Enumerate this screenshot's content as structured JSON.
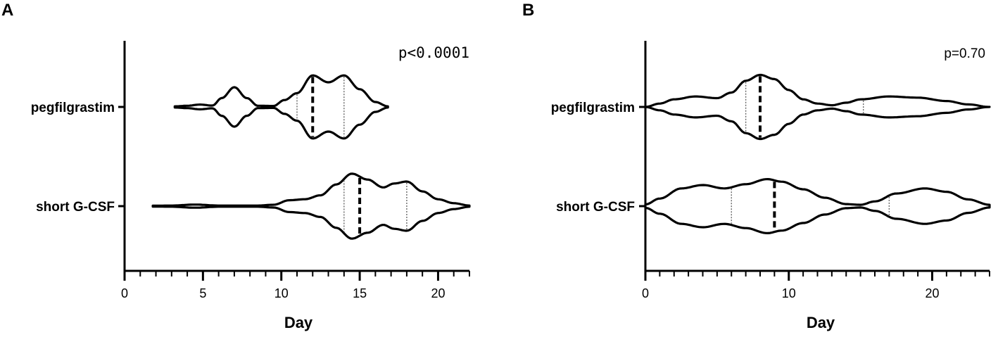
{
  "chart_data": [
    {
      "type": "violin",
      "panel_label": "A",
      "annotation": "p<0.0001",
      "xlabel": "Day",
      "ylabel": "",
      "xlim": [
        0,
        22
      ],
      "x_major_ticks": [
        0,
        5,
        10,
        15,
        20
      ],
      "x_minor_step": 1,
      "categories": [
        "pegfilgrastim",
        "short G-CSF"
      ],
      "series": [
        {
          "name": "pegfilgrastim",
          "min": 3.2,
          "max": 16.8,
          "median": 12,
          "q1": 11,
          "q3": 14,
          "density": [
            [
              3.2,
              0.03
            ],
            [
              4.0,
              0.06
            ],
            [
              4.8,
              0.12
            ],
            [
              5.6,
              0.07
            ],
            [
              6.2,
              0.45
            ],
            [
              7.0,
              1.0
            ],
            [
              7.8,
              0.45
            ],
            [
              8.5,
              0.06
            ],
            [
              9.5,
              0.05
            ],
            [
              10.2,
              0.35
            ],
            [
              11.0,
              0.7
            ],
            [
              12.0,
              1.6
            ],
            [
              13.0,
              1.25
            ],
            [
              14.0,
              1.6
            ],
            [
              15.0,
              0.9
            ],
            [
              16.0,
              0.25
            ],
            [
              16.8,
              0.03
            ]
          ]
        },
        {
          "name": "short G-CSF",
          "min": 1.8,
          "max": 22,
          "median": 15,
          "q1": 14,
          "q3": 18,
          "density": [
            [
              1.8,
              0.02
            ],
            [
              3.0,
              0.03
            ],
            [
              4.5,
              0.08
            ],
            [
              6.0,
              0.03
            ],
            [
              8.5,
              0.03
            ],
            [
              9.5,
              0.07
            ],
            [
              10.5,
              0.3
            ],
            [
              11.5,
              0.35
            ],
            [
              12.5,
              0.55
            ],
            [
              13.5,
              1.1
            ],
            [
              14.5,
              1.65
            ],
            [
              15.5,
              1.35
            ],
            [
              16.5,
              0.95
            ],
            [
              17.2,
              1.15
            ],
            [
              18.0,
              1.25
            ],
            [
              19.0,
              0.75
            ],
            [
              20.0,
              0.35
            ],
            [
              21.0,
              0.15
            ],
            [
              22.0,
              0.03
            ]
          ]
        }
      ]
    },
    {
      "type": "violin",
      "panel_label": "B",
      "annotation": "p=0.70",
      "xlabel": "Day",
      "ylabel": "",
      "xlim": [
        0,
        24
      ],
      "x_major_ticks": [
        0,
        10,
        20
      ],
      "x_minor_step": 1,
      "categories": [
        "pegfilgrastim",
        "short G-CSF"
      ],
      "series": [
        {
          "name": "pegfilgrastim",
          "min": 0,
          "max": 24,
          "median": 8,
          "q1": 7,
          "q3": 15.2,
          "density": [
            [
              0,
              0.0
            ],
            [
              1.0,
              0.2
            ],
            [
              2.0,
              0.45
            ],
            [
              3.5,
              0.62
            ],
            [
              5.0,
              0.52
            ],
            [
              6.0,
              0.85
            ],
            [
              7.0,
              1.55
            ],
            [
              8.0,
              1.9
            ],
            [
              9.0,
              1.65
            ],
            [
              10.0,
              1.0
            ],
            [
              11.0,
              0.45
            ],
            [
              12.0,
              0.2
            ],
            [
              13.0,
              0.1
            ],
            [
              14.0,
              0.25
            ],
            [
              15.0,
              0.45
            ],
            [
              17.0,
              0.62
            ],
            [
              19.0,
              0.55
            ],
            [
              21.0,
              0.35
            ],
            [
              22.5,
              0.15
            ],
            [
              24.0,
              0.0
            ]
          ]
        },
        {
          "name": "short G-CSF",
          "min": 0,
          "max": 24,
          "median": 9,
          "q1": 6,
          "q3": 17,
          "density": [
            [
              0,
              0.1
            ],
            [
              1.0,
              0.45
            ],
            [
              2.5,
              1.05
            ],
            [
              4.0,
              1.25
            ],
            [
              5.5,
              1.05
            ],
            [
              7.0,
              1.3
            ],
            [
              8.5,
              1.6
            ],
            [
              9.5,
              1.45
            ],
            [
              11.0,
              1.0
            ],
            [
              12.5,
              0.5
            ],
            [
              14.0,
              0.12
            ],
            [
              15.0,
              0.08
            ],
            [
              16.0,
              0.28
            ],
            [
              17.5,
              0.75
            ],
            [
              19.5,
              1.05
            ],
            [
              21.0,
              0.85
            ],
            [
              22.5,
              0.4
            ],
            [
              24.0,
              0.08
            ]
          ]
        }
      ]
    }
  ]
}
